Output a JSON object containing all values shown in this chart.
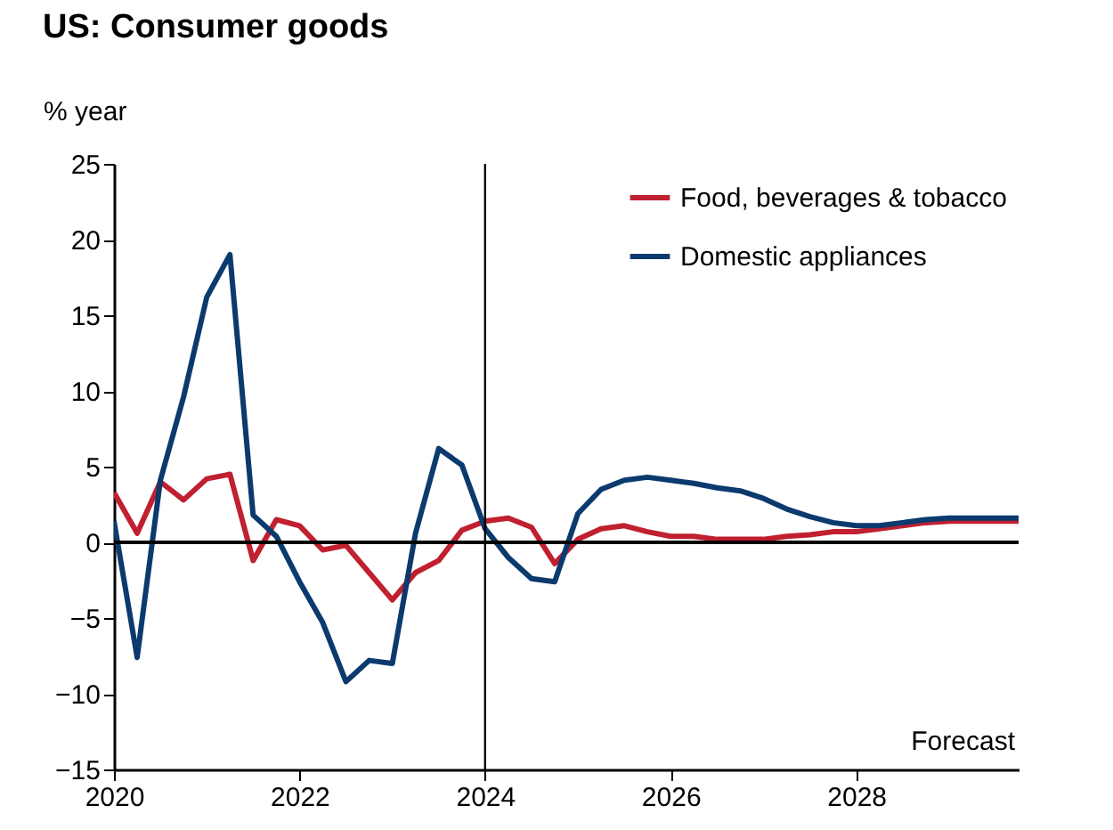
{
  "chart_data": {
    "type": "line",
    "title": "US: Consumer goods",
    "ylabel": "% year",
    "x": [
      2020,
      2020.25,
      2020.5,
      2020.75,
      2021,
      2021.25,
      2021.5,
      2021.75,
      2022,
      2022.25,
      2022.5,
      2022.75,
      2023,
      2023.25,
      2023.5,
      2023.75,
      2024,
      2024.25,
      2024.5,
      2024.75,
      2025,
      2025.25,
      2025.5,
      2025.75,
      2026,
      2026.25,
      2026.5,
      2026.75,
      2027,
      2027.25,
      2027.5,
      2027.75,
      2028,
      2028.25,
      2028.5,
      2028.75,
      2029,
      2029.25,
      2029.5,
      2029.75
    ],
    "series": [
      {
        "name": "Food, beverages & tobacco",
        "color": "#c0202f",
        "values": [
          3.3,
          0.6,
          4.0,
          2.8,
          4.2,
          4.5,
          -1.2,
          1.5,
          1.1,
          -0.5,
          -0.2,
          -2.0,
          -3.8,
          -2.0,
          -1.2,
          0.8,
          1.4,
          1.6,
          1.0,
          -1.4,
          0.2,
          0.9,
          1.1,
          0.7,
          0.4,
          0.4,
          0.2,
          0.2,
          0.2,
          0.4,
          0.5,
          0.7,
          0.7,
          0.9,
          1.1,
          1.3,
          1.4,
          1.4,
          1.4,
          1.4
        ]
      },
      {
        "name": "Domestic appliances",
        "color": "#0b3a6e",
        "values": [
          1.4,
          -7.6,
          4.1,
          9.6,
          16.2,
          19.0,
          1.8,
          0.4,
          -2.6,
          -5.3,
          -9.2,
          -7.8,
          -8.0,
          0.6,
          6.2,
          5.1,
          0.9,
          -1.0,
          -2.4,
          -2.6,
          1.9,
          3.5,
          4.1,
          4.3,
          4.1,
          3.9,
          3.6,
          3.4,
          2.9,
          2.2,
          1.7,
          1.3,
          1.1,
          1.1,
          1.3,
          1.5,
          1.6,
          1.6,
          1.6,
          1.6
        ]
      }
    ],
    "xlim": [
      2020,
      2029.75
    ],
    "xticks": [
      2020,
      2022,
      2024,
      2026,
      2028
    ],
    "ylim": [
      -15,
      25
    ],
    "yticks": [
      -15,
      -10,
      -5,
      0,
      5,
      10,
      15,
      20,
      25
    ],
    "ref_lines": [
      {
        "axis": "x",
        "value": 2024
      },
      {
        "axis": "y",
        "value": 0
      }
    ],
    "annotations": [
      "Forecast"
    ],
    "grid": false,
    "legend": "top right",
    "line_style": "solid"
  }
}
